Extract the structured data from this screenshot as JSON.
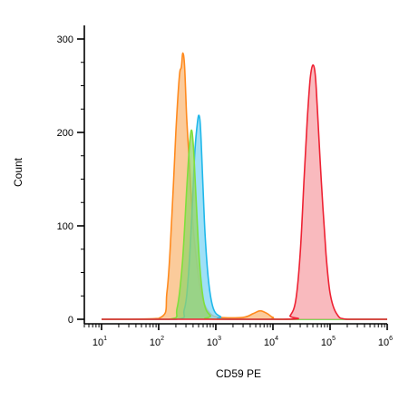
{
  "chart_data": {
    "type": "area",
    "title": "",
    "xlabel": "CD59 PE",
    "ylabel": "Count",
    "xscale": "log",
    "xlim": [
      5,
      1000000
    ],
    "ylim": [
      -12,
      315
    ],
    "grid": false,
    "x_ticks": [
      {
        "base": "10",
        "exp": "1",
        "value": 10
      },
      {
        "base": "10",
        "exp": "2",
        "value": 100
      },
      {
        "base": "10",
        "exp": "3",
        "value": 1000
      },
      {
        "base": "10",
        "exp": "4",
        "value": 10000
      },
      {
        "base": "10",
        "exp": "5",
        "value": 100000
      },
      {
        "base": "10",
        "exp": "6",
        "value": 1000000
      }
    ],
    "y_ticks": [
      "0",
      "100",
      "200",
      "300"
    ],
    "series": [
      {
        "color": "#ff8a1e",
        "fill": "#f9b97a",
        "points": [
          [
            10,
            0
          ],
          [
            100,
            1
          ],
          [
            140,
            30
          ],
          [
            170,
            110
          ],
          [
            200,
            200
          ],
          [
            230,
            260
          ],
          [
            250,
            270
          ],
          [
            265,
            285
          ],
          [
            285,
            270
          ],
          [
            310,
            215
          ],
          [
            350,
            160
          ],
          [
            400,
            100
          ],
          [
            500,
            45
          ],
          [
            600,
            20
          ],
          [
            800,
            6
          ],
          [
            1200,
            2
          ],
          [
            3000,
            2
          ],
          [
            4500,
            6
          ],
          [
            6000,
            9
          ],
          [
            8000,
            6
          ],
          [
            10000,
            2
          ],
          [
            15000,
            0
          ],
          [
            1000000,
            0
          ]
        ]
      },
      {
        "color": "#20b8ea",
        "fill": "#7fd6f4",
        "points": [
          [
            10,
            0
          ],
          [
            200,
            0
          ],
          [
            280,
            10
          ],
          [
            330,
            45
          ],
          [
            380,
            110
          ],
          [
            430,
            180
          ],
          [
            480,
            212
          ],
          [
            510,
            218
          ],
          [
            540,
            205
          ],
          [
            590,
            150
          ],
          [
            650,
            90
          ],
          [
            750,
            40
          ],
          [
            900,
            12
          ],
          [
            1200,
            3
          ],
          [
            2000,
            0
          ],
          [
            1000000,
            0
          ]
        ]
      },
      {
        "color": "#7ee03c",
        "fill": "#97d36a",
        "points": [
          [
            10,
            0
          ],
          [
            150,
            0
          ],
          [
            210,
            12
          ],
          [
            260,
            60
          ],
          [
            310,
            140
          ],
          [
            350,
            190
          ],
          [
            380,
            202
          ],
          [
            410,
            180
          ],
          [
            460,
            120
          ],
          [
            520,
            60
          ],
          [
            620,
            18
          ],
          [
            800,
            4
          ],
          [
            1200,
            0
          ],
          [
            1000000,
            0
          ]
        ]
      },
      {
        "color": "#ee2233",
        "fill": "#f7a3a8",
        "points": [
          [
            10,
            0
          ],
          [
            15000,
            0
          ],
          [
            20000,
            4
          ],
          [
            25000,
            20
          ],
          [
            30000,
            70
          ],
          [
            35000,
            150
          ],
          [
            40000,
            215
          ],
          [
            45000,
            258
          ],
          [
            50000,
            272
          ],
          [
            55000,
            262
          ],
          [
            60000,
            225
          ],
          [
            70000,
            150
          ],
          [
            85000,
            70
          ],
          [
            100000,
            28
          ],
          [
            130000,
            6
          ],
          [
            200000,
            0
          ],
          [
            1000000,
            0
          ]
        ]
      }
    ]
  }
}
